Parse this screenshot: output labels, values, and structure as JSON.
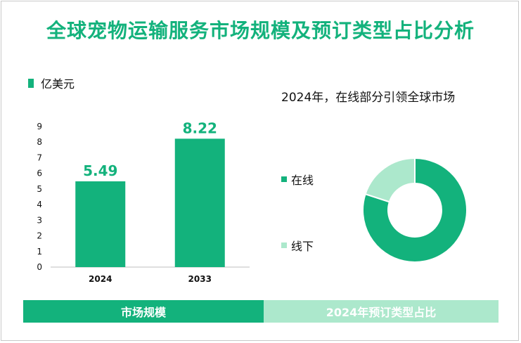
{
  "title": "全球宠物运输服务市场规模及预订类型占比分析",
  "colors": {
    "primary": "#13b27c",
    "light": "#ace8cc"
  },
  "legend_unit": "亿美元",
  "pie_title": "2024年，在线部分引领全球市场",
  "tabs": {
    "left": "市场规模",
    "right": "2024年预订类型占比"
  },
  "chart_data": [
    {
      "type": "bar",
      "categories": [
        "2024",
        "2033"
      ],
      "values": [
        5.49,
        8.22
      ],
      "ylim": [
        0,
        9
      ],
      "yticks": [
        0,
        1,
        2,
        3,
        4,
        5,
        6,
        7,
        8,
        9
      ],
      "series": [
        {
          "name": "亿美元",
          "values": [
            5.49,
            8.22
          ]
        }
      ]
    },
    {
      "type": "pie",
      "donut": true,
      "labels": [
        "在线",
        "线下"
      ],
      "values": [
        0.8,
        0.2
      ],
      "colors": [
        "#13b27c",
        "#ace8cc"
      ],
      "title": "2024年，在线部分引领全球市场"
    }
  ]
}
